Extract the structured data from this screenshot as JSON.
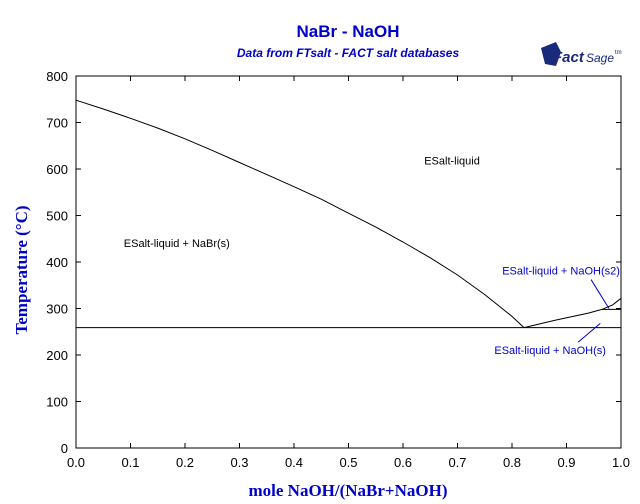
{
  "colors": {
    "title": "#0000cc",
    "axis": "#000000",
    "phase_line": "#000000",
    "label_blue": "#0000cc",
    "label_black": "#000000",
    "logo": "#1a2a7a"
  },
  "logo": {
    "name": "FactSage",
    "main": "Fact",
    "sub": "Sage",
    "tm": "tm"
  },
  "chart_data": {
    "type": "line",
    "title": "NaBr - NaOH",
    "subtitle": "Data from FTsalt - FACT salt databases",
    "xlabel": "mole NaOH/(NaBr+NaOH)",
    "ylabel": "Temperature (°C)",
    "xlim": [
      0,
      1
    ],
    "ylim": [
      0,
      800
    ],
    "xticks": [
      "0.0",
      "0.1",
      "0.2",
      "0.3",
      "0.4",
      "0.5",
      "0.6",
      "0.7",
      "0.8",
      "0.9",
      "1.0"
    ],
    "yticks": [
      "0",
      "100",
      "200",
      "300",
      "400",
      "500",
      "600",
      "700",
      "800"
    ],
    "grid": false,
    "series": [
      {
        "x": [
          0,
          0.05,
          0.1,
          0.15,
          0.2,
          0.25,
          0.3,
          0.35,
          0.4,
          0.45,
          0.5,
          0.55,
          0.6,
          0.65,
          0.7,
          0.75,
          0.8,
          0.822
        ],
        "y": [
          748,
          729,
          709,
          688,
          665,
          640,
          614,
          588,
          562,
          535,
          505,
          475,
          443,
          409,
          372,
          330,
          283,
          259
        ]
      },
      {
        "x": [
          0.822,
          0.88,
          0.94,
          0.965
        ],
        "y": [
          259,
          275,
          290,
          298
        ]
      },
      {
        "x": [
          0.965,
          0.985,
          1.0
        ],
        "y": [
          298,
          308,
          322
        ]
      },
      {
        "x": [
          0.965,
          1.0
        ],
        "y": [
          298,
          298
        ]
      },
      {
        "x": [
          0,
          1.0
        ],
        "y": [
          259,
          259
        ]
      }
    ],
    "annotations": [
      {
        "text": "ESalt-liquid",
        "x": 0.69,
        "y": 610,
        "color": "black"
      },
      {
        "text": "ESalt-liquid + NaBr(s)",
        "x": 0.185,
        "y": 432,
        "color": "black"
      },
      {
        "text": "ESalt-liquid + NaOH(s2)",
        "x": 0.89,
        "y": 373,
        "color": "blue",
        "pointer_to": [
          0.978,
          300
        ]
      },
      {
        "text": "ESalt-liquid + NaOH(s)",
        "x": 0.87,
        "y": 202,
        "color": "blue",
        "pointer_to": [
          0.962,
          268
        ]
      }
    ]
  }
}
